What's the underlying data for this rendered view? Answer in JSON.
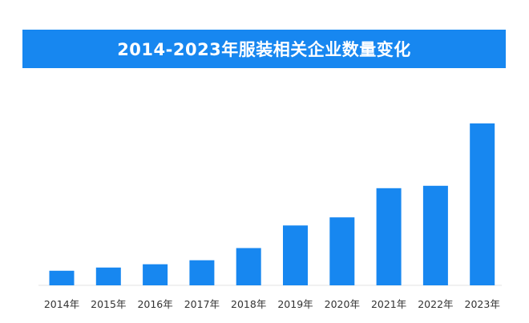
{
  "title": "2014-2023年服装相关企业数量变化",
  "colors": {
    "banner": "#1787f0",
    "bar": "#1787f0",
    "title_text": "#ffffff",
    "tick_text": "#333333",
    "baseline": "#e3e3e3"
  },
  "chart_data": {
    "type": "bar",
    "title": "2014-2023年服装相关企业数量变化",
    "categories": [
      "2014年",
      "2015年",
      "2016年",
      "2017年",
      "2018年",
      "2019年",
      "2020年",
      "2021年",
      "2022年",
      "2023年"
    ],
    "values": [
      9,
      11,
      13,
      15.5,
      23,
      37,
      42,
      60,
      61.5,
      100
    ],
    "value_scale": "relative (no y-axis or values printed; 2023 = 100)",
    "xlabel": "",
    "ylabel": "",
    "ylim": [
      0,
      100
    ],
    "grid": false,
    "legend": "none"
  }
}
